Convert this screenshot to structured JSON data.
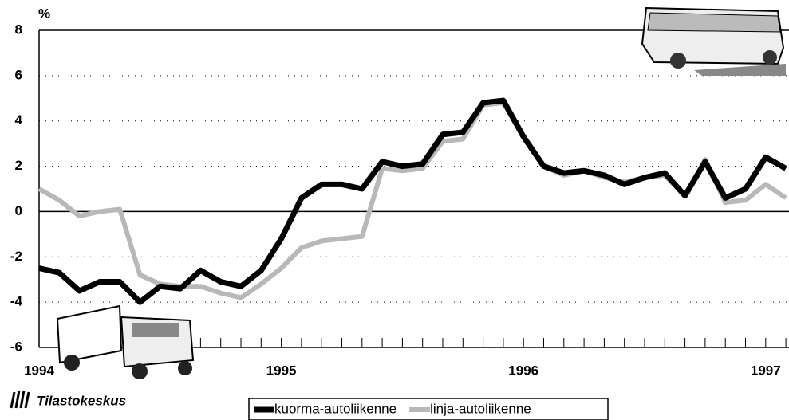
{
  "chart_data": {
    "type": "line",
    "y_label": "%",
    "categories": [
      "1994",
      null,
      null,
      null,
      null,
      null,
      null,
      null,
      null,
      null,
      null,
      null,
      "1995",
      null,
      null,
      null,
      null,
      null,
      null,
      null,
      null,
      null,
      null,
      null,
      "1996",
      null,
      null,
      null,
      null,
      null,
      null,
      null,
      null,
      null,
      null,
      null,
      "1997",
      null
    ],
    "series": [
      {
        "name": "kuorma-autoliikenne",
        "color": "#000000",
        "width": 7,
        "values": [
          -2.5,
          -2.7,
          -3.5,
          -3.1,
          -3.1,
          -4.0,
          -3.3,
          -3.4,
          -2.6,
          -3.1,
          -3.3,
          -2.6,
          -1.2,
          0.6,
          1.2,
          1.2,
          1.0,
          2.2,
          2.0,
          2.1,
          3.4,
          3.5,
          4.8,
          4.9,
          3.3,
          2.0,
          1.7,
          1.8,
          1.6,
          1.2,
          1.5,
          1.7,
          0.7,
          2.2,
          0.6,
          1.0,
          2.4,
          1.9
        ]
      },
      {
        "name": "linja-autoliikenne",
        "color": "#b8b8b8",
        "width": 6,
        "values": [
          1.0,
          0.5,
          -0.2,
          0.0,
          0.1,
          -2.8,
          -3.2,
          -3.3,
          -3.3,
          -3.6,
          -3.8,
          -3.2,
          -2.5,
          -1.6,
          -1.3,
          -1.2,
          -1.1,
          1.9,
          1.8,
          1.9,
          3.1,
          3.2,
          4.7,
          4.8,
          3.3,
          2.0,
          1.6,
          1.8,
          1.5,
          1.3,
          1.5,
          1.6,
          0.7,
          2.3,
          0.4,
          0.5,
          1.2,
          0.6
        ]
      }
    ],
    "ylim": [
      -6,
      8
    ],
    "yticks": [
      -6,
      -4,
      -2,
      0,
      2,
      4,
      6,
      8
    ],
    "grid": true
  },
  "footer": {
    "logo": "Tilastokeskus"
  }
}
